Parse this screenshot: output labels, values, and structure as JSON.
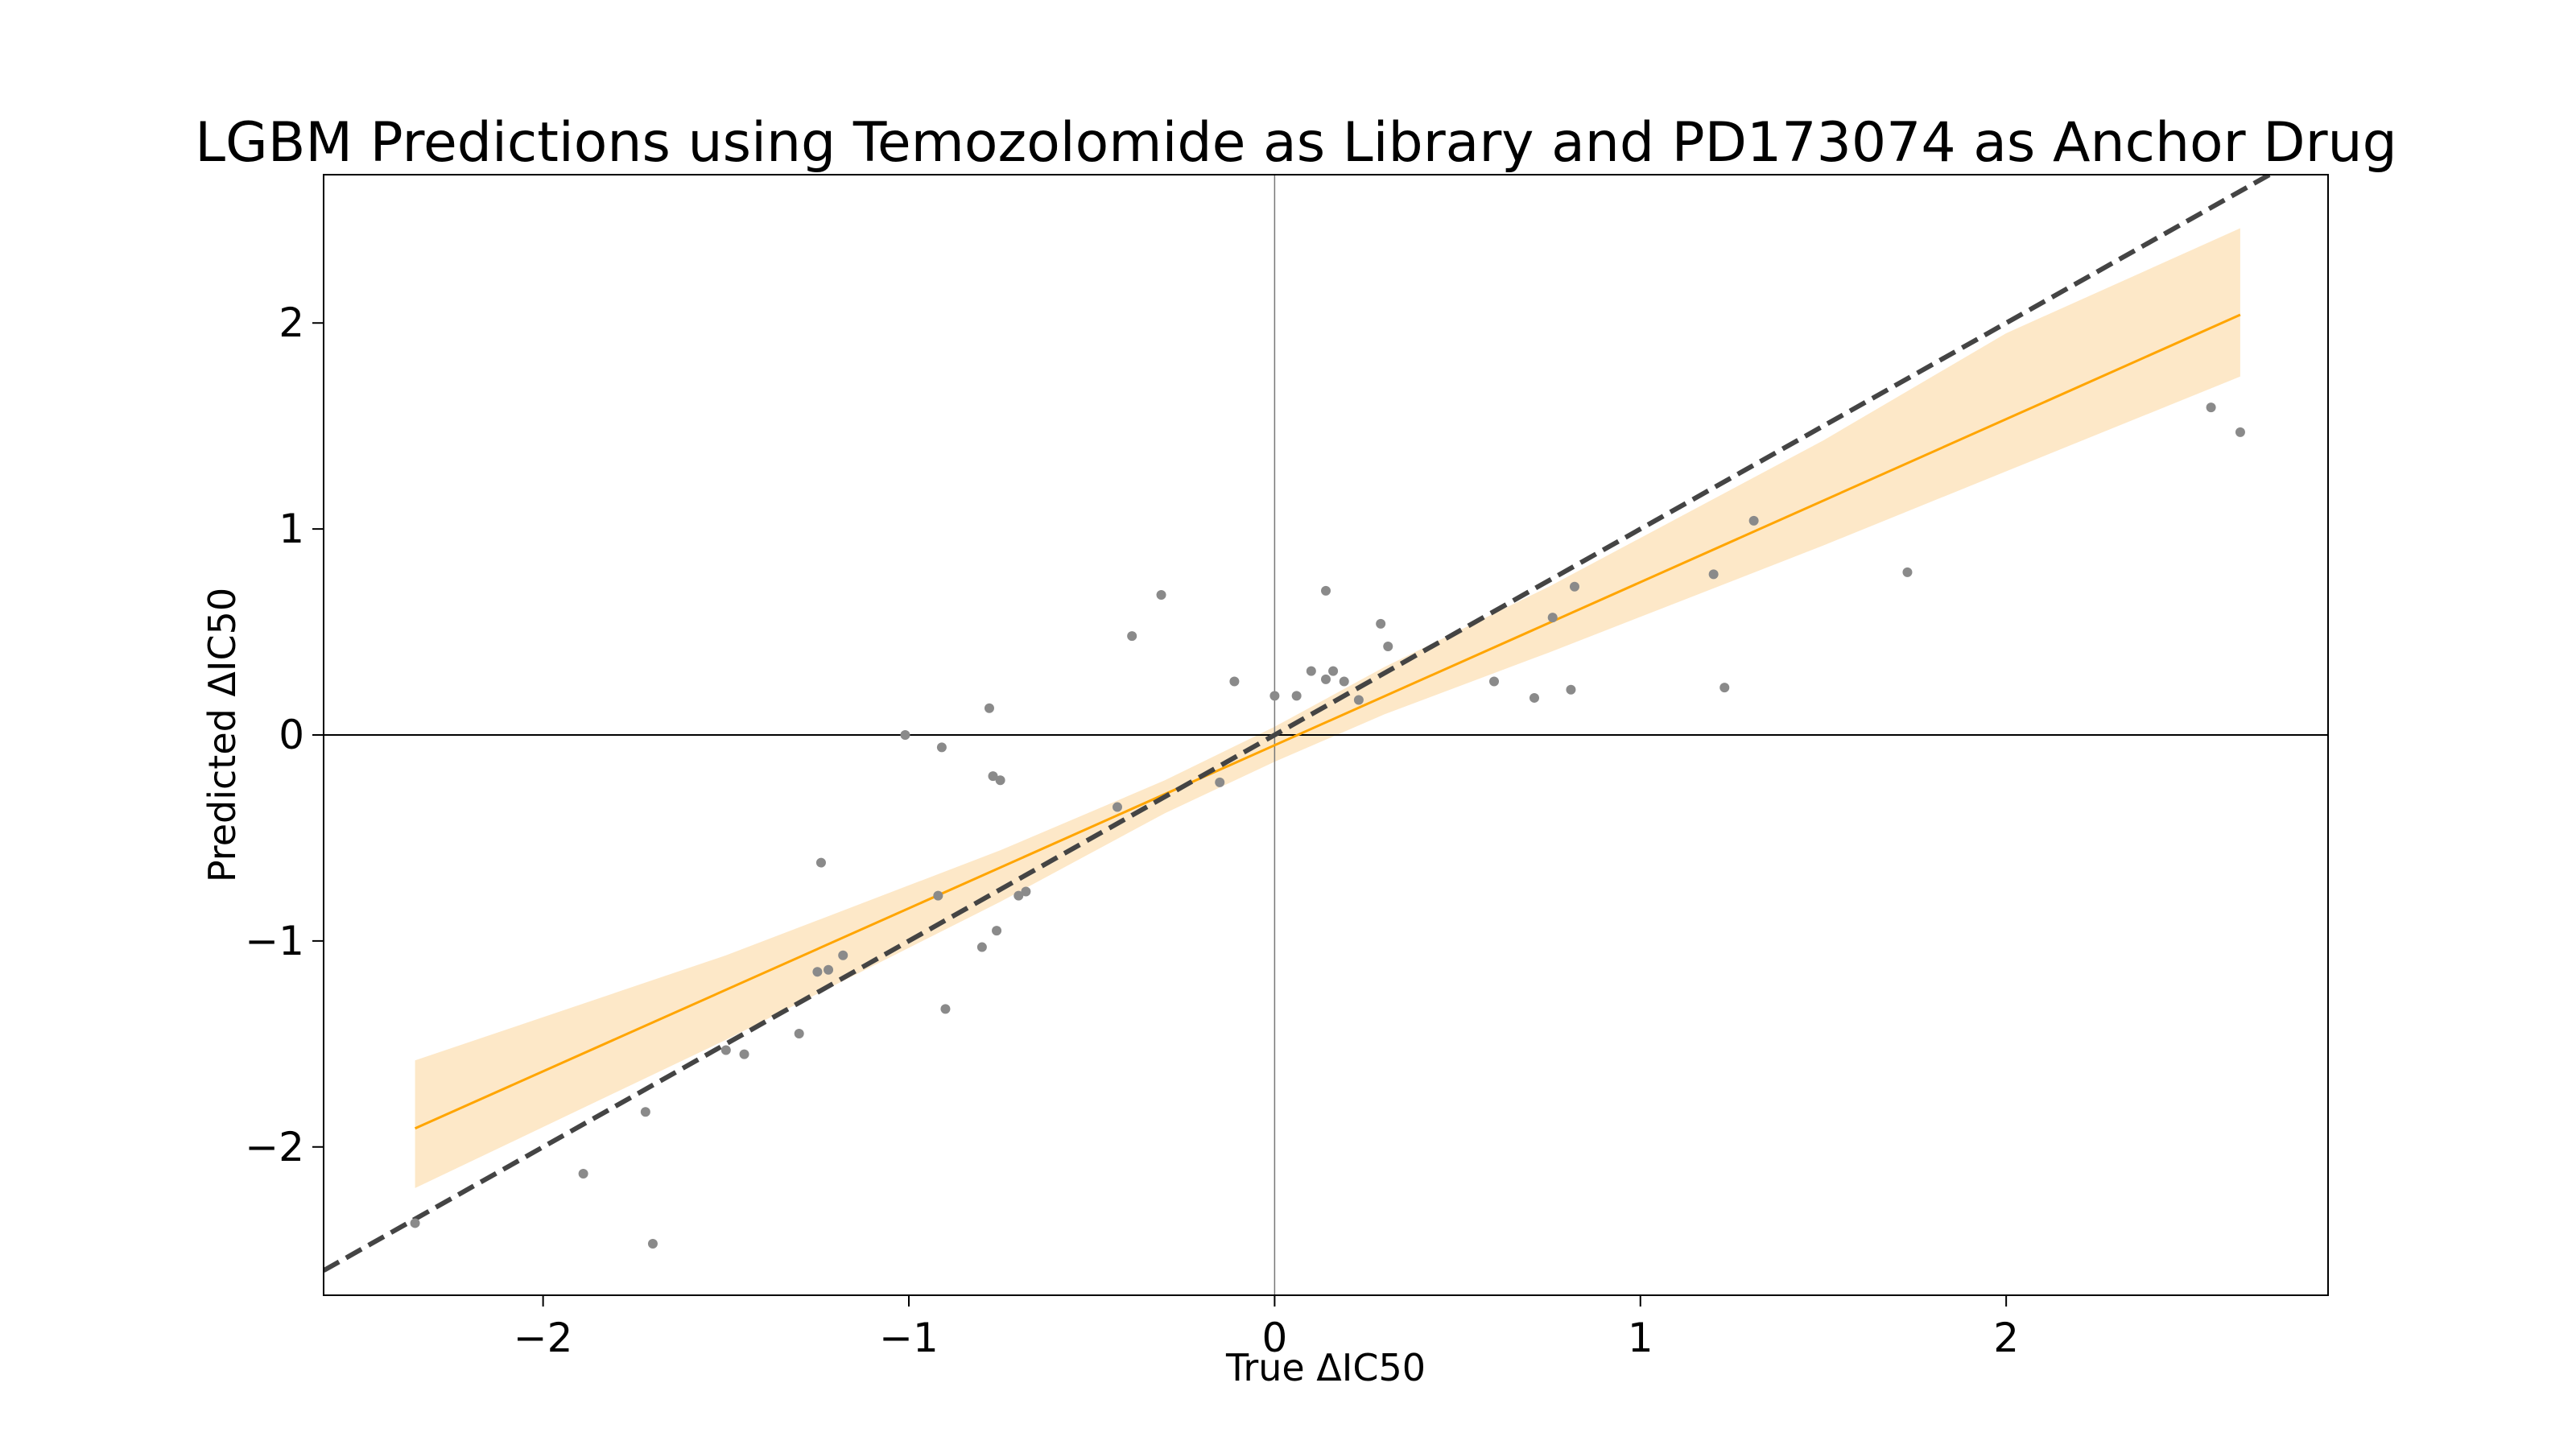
{
  "chart_data": {
    "type": "scatter",
    "title": "LGBM Predictions using Temozolomide as Library and PD173074 as Anchor Drug",
    "xlabel": "True ΔIC50",
    "ylabel": "Predicted ΔIC50",
    "xlim": [
      -2.6,
      2.88
    ],
    "ylim": [
      -2.72,
      2.72
    ],
    "xticks": [
      -2,
      -1,
      0,
      1,
      2
    ],
    "yticks": [
      -2,
      -1,
      0,
      1,
      2
    ],
    "xtick_labels": [
      "−2",
      "−1",
      "0",
      "1",
      "2"
    ],
    "ytick_labels": [
      "−2",
      "−1",
      "0",
      "1",
      "2"
    ],
    "grid": false,
    "colors": {
      "points": "#8a8a8a",
      "fit_line": "#ffa500",
      "confidence_band": "#fde8c8",
      "identity_line": "#444444",
      "zero_lines": "#000000"
    },
    "points": [
      {
        "x": -2.35,
        "y": -2.37
      },
      {
        "x": -1.89,
        "y": -2.13
      },
      {
        "x": -1.72,
        "y": -1.83
      },
      {
        "x": -1.7,
        "y": -2.47
      },
      {
        "x": -1.5,
        "y": -1.53
      },
      {
        "x": -1.45,
        "y": -1.55
      },
      {
        "x": -1.3,
        "y": -1.45
      },
      {
        "x": -1.25,
        "y": -1.15
      },
      {
        "x": -1.24,
        "y": -0.62
      },
      {
        "x": -1.22,
        "y": -1.14
      },
      {
        "x": -1.18,
        "y": -1.07
      },
      {
        "x": -1.01,
        "y": 0.0
      },
      {
        "x": -0.92,
        "y": -0.78
      },
      {
        "x": -0.91,
        "y": -0.06
      },
      {
        "x": -0.9,
        "y": -1.33
      },
      {
        "x": -0.8,
        "y": -1.03
      },
      {
        "x": -0.78,
        "y": 0.13
      },
      {
        "x": -0.77,
        "y": -0.2
      },
      {
        "x": -0.76,
        "y": -0.95
      },
      {
        "x": -0.75,
        "y": -0.22
      },
      {
        "x": -0.7,
        "y": -0.78
      },
      {
        "x": -0.68,
        "y": -0.76
      },
      {
        "x": -0.43,
        "y": -0.35
      },
      {
        "x": -0.39,
        "y": 0.48
      },
      {
        "x": -0.31,
        "y": 0.68
      },
      {
        "x": -0.15,
        "y": -0.23
      },
      {
        "x": -0.11,
        "y": 0.26
      },
      {
        "x": 0.0,
        "y": 0.19
      },
      {
        "x": 0.06,
        "y": 0.19
      },
      {
        "x": 0.1,
        "y": 0.31
      },
      {
        "x": 0.14,
        "y": 0.27
      },
      {
        "x": 0.14,
        "y": 0.7
      },
      {
        "x": 0.16,
        "y": 0.31
      },
      {
        "x": 0.19,
        "y": 0.26
      },
      {
        "x": 0.23,
        "y": 0.17
      },
      {
        "x": 0.29,
        "y": 0.54
      },
      {
        "x": 0.31,
        "y": 0.43
      },
      {
        "x": 0.6,
        "y": 0.26
      },
      {
        "x": 0.71,
        "y": 0.18
      },
      {
        "x": 0.76,
        "y": 0.57
      },
      {
        "x": 0.81,
        "y": 0.22
      },
      {
        "x": 0.82,
        "y": 0.72
      },
      {
        "x": 1.2,
        "y": 0.78
      },
      {
        "x": 1.23,
        "y": 0.23
      },
      {
        "x": 1.31,
        "y": 1.04
      },
      {
        "x": 1.73,
        "y": 0.79
      },
      {
        "x": 2.56,
        "y": 1.59
      },
      {
        "x": 2.64,
        "y": 1.47
      }
    ],
    "fit_line": [
      {
        "x": -2.35,
        "y": -1.91
      },
      {
        "x": 2.64,
        "y": 2.04
      }
    ],
    "confidence_band": [
      {
        "x": -2.35,
        "lower": -2.2,
        "upper": -1.58
      },
      {
        "x": -1.5,
        "lower": -1.48,
        "upper": -1.07
      },
      {
        "x": -0.75,
        "lower": -0.81,
        "upper": -0.56
      },
      {
        "x": -0.3,
        "lower": -0.38,
        "upper": -0.22
      },
      {
        "x": 0.0,
        "lower": -0.13,
        "upper": 0.04
      },
      {
        "x": 0.3,
        "lower": 0.1,
        "upper": 0.33
      },
      {
        "x": 0.75,
        "lower": 0.4,
        "upper": 0.72
      },
      {
        "x": 1.5,
        "lower": 0.92,
        "upper": 1.43
      },
      {
        "x": 2.0,
        "lower": 1.28,
        "upper": 1.95
      },
      {
        "x": 2.64,
        "lower": 1.74,
        "upper": 2.46
      }
    ],
    "identity_line": [
      {
        "x": -2.6,
        "y": -2.6
      },
      {
        "x": 2.88,
        "y": 2.88
      }
    ]
  }
}
